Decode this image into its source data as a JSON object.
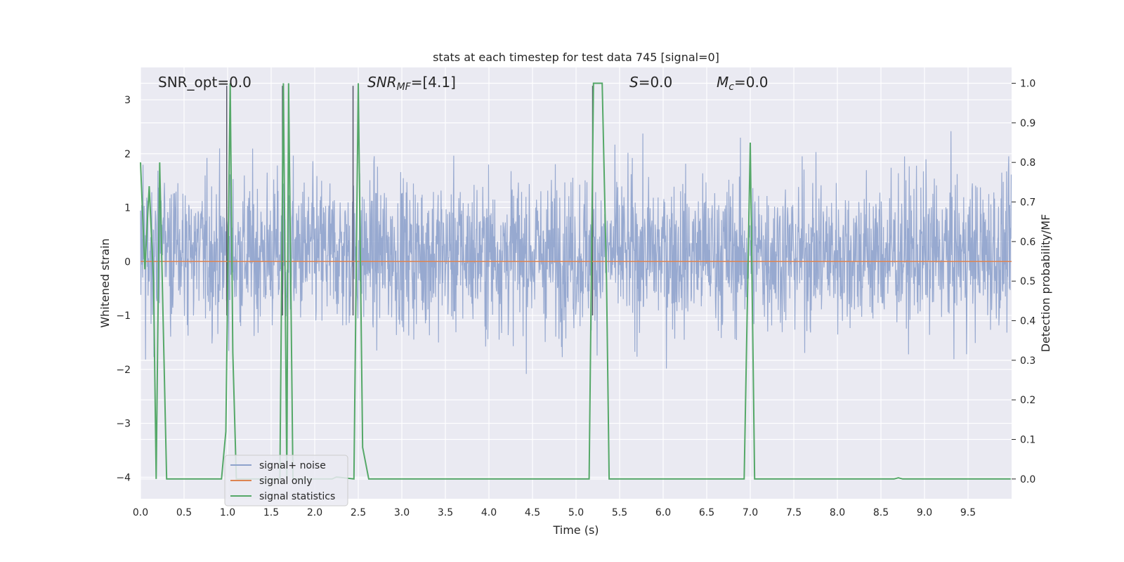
{
  "chart_data": {
    "type": "line",
    "title": "stats at each timestep for test data 745 [signal=0]",
    "xlabel": "Time (s)",
    "ylabel": "Whitened strain",
    "y2label": "Detection probability/MF",
    "xlim": [
      0,
      10
    ],
    "ylim": [
      -4.4,
      3.6
    ],
    "y2lim": [
      -0.05,
      1.04
    ],
    "xticks": [
      "0.0",
      "0.5",
      "1.0",
      "1.5",
      "2.0",
      "2.5",
      "3.0",
      "3.5",
      "4.0",
      "4.5",
      "5.0",
      "5.5",
      "6.0",
      "6.5",
      "7.0",
      "7.5",
      "8.0",
      "8.5",
      "9.0",
      "9.5"
    ],
    "yticks": [
      "3",
      "2",
      "1",
      "0",
      "−1",
      "−2",
      "−3",
      "−4"
    ],
    "y2ticks": [
      "1.0",
      "0.9",
      "0.8",
      "0.7",
      "0.6",
      "0.5",
      "0.4",
      "0.3",
      "0.2",
      "0.1",
      "0.0"
    ],
    "grid": true,
    "background": "#eaeaf2",
    "legend_position": "lower-left",
    "annotations": {
      "snr_opt": "SNR_opt=0.0",
      "snr_mf_label": "SNR",
      "snr_mf_sub": "MF",
      "snr_mf_value": "=[4.1]",
      "s_label": "S",
      "s_value": "=0.0",
      "mc_label": "M",
      "mc_sub": "c",
      "mc_value": "=0.0"
    },
    "series": [
      {
        "name": "signal+ noise",
        "color": "#8ea2cc",
        "axis": "left",
        "description_values": "whitened noise, approx. Gaussian, mostly within [-2.5, 3.3]"
      },
      {
        "name": "signal only",
        "color": "#dd8452",
        "axis": "left",
        "x": [
          0,
          10
        ],
        "y": [
          0,
          0
        ]
      },
      {
        "name": "signal statistics",
        "color": "#55a868",
        "axis": "right",
        "x": [
          0.0,
          0.05,
          0.1,
          0.15,
          0.18,
          0.22,
          0.25,
          0.3,
          0.93,
          0.98,
          1.03,
          1.06,
          1.1,
          1.6,
          1.64,
          1.68,
          1.7,
          1.75,
          2.2,
          2.25,
          2.45,
          2.5,
          2.55,
          2.62,
          5.15,
          5.2,
          5.25,
          5.3,
          5.35,
          5.38,
          6.93,
          7.0,
          7.05,
          8.65,
          8.7,
          8.75,
          9.99
        ],
        "y": [
          0.8,
          0.53,
          0.74,
          0.5,
          0.0,
          0.8,
          0.5,
          0.0,
          0.0,
          0.12,
          1.0,
          0.32,
          0.0,
          0.0,
          1.0,
          0.0,
          1.0,
          0.0,
          0.0,
          0.005,
          0.0,
          1.0,
          0.08,
          0.0,
          0.0,
          1.0,
          1.0,
          1.0,
          0.5,
          0.0,
          0.0,
          0.85,
          0.0,
          0.0,
          0.003,
          0.0,
          0.0
        ]
      }
    ],
    "vertical_markers": [
      0.99,
      1.63,
      2.44,
      5.19
    ]
  }
}
